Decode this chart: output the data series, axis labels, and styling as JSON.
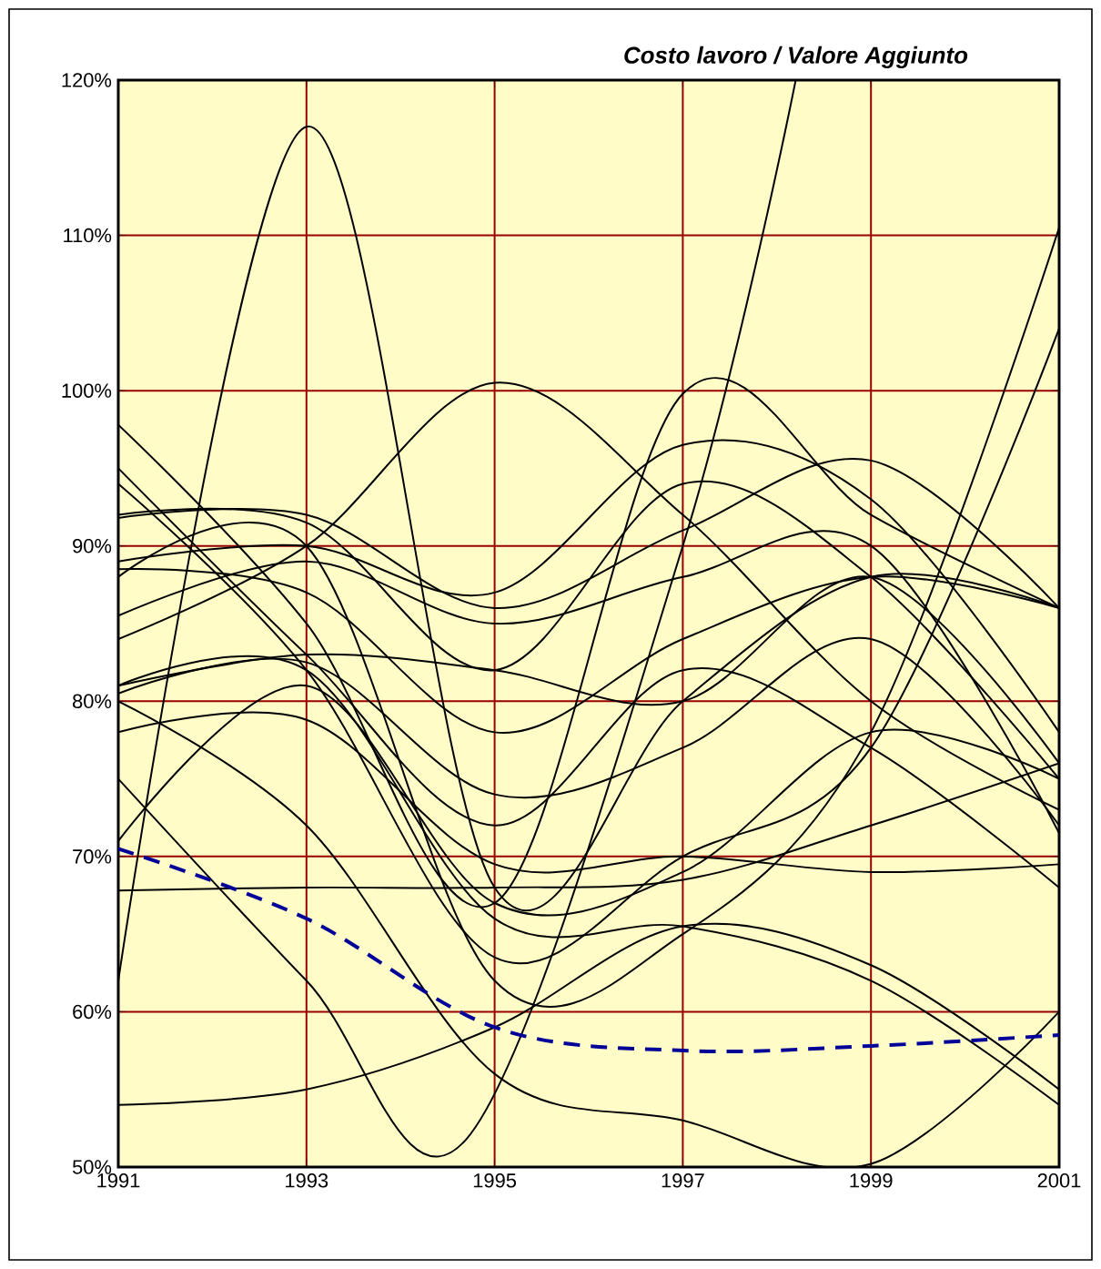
{
  "chart_data": {
    "type": "line",
    "title": "*Costo lavoro / Valore Aggiunto*",
    "x": [
      1991,
      1993,
      1995,
      1997,
      1999,
      2001
    ],
    "xlim": [
      1991,
      2001
    ],
    "xticks": [
      1991,
      1993,
      1995,
      1997,
      1999,
      2001
    ],
    "ylim": [
      50,
      120
    ],
    "yticks": [
      {
        "value": 50,
        "label": "50%"
      },
      {
        "value": 60,
        "label": "60%"
      },
      {
        "value": 70,
        "label": "70%"
      },
      {
        "value": 80,
        "label": "80%"
      },
      {
        "value": 90,
        "label": "90%"
      },
      {
        "value": 100,
        "label": "100%"
      },
      {
        "value": 110,
        "label": "110%"
      },
      {
        "value": 120,
        "label": "120%"
      }
    ],
    "grid": true,
    "marker": "none",
    "series": [
      {
        "color": "#000000",
        "values": [
          62,
          117,
          68,
          80,
          88,
          86
        ]
      },
      {
        "color": "#000000",
        "x": [
          1991,
          1993,
          1994.7,
          1997,
          1998.2
        ],
        "values": [
          75,
          62,
          51.8,
          90,
          120
        ]
      },
      {
        "color": "#000000",
        "values": [
          84,
          90,
          100.5,
          92,
          80,
          73
        ]
      },
      {
        "color": "#000000",
        "values": [
          97.8,
          85,
          67,
          99.8,
          92,
          86
        ]
      },
      {
        "color": "#000000",
        "values": [
          88,
          90,
          62,
          65,
          78,
          110.5
        ]
      },
      {
        "color": "#000000",
        "values": [
          94,
          82,
          63.5,
          70,
          77,
          104
        ]
      },
      {
        "color": "#000000",
        "values": [
          67.8,
          68,
          68,
          68.5,
          72,
          76
        ]
      },
      {
        "color": "#000000",
        "values": [
          54,
          55,
          59,
          65.5,
          63,
          55
        ]
      },
      {
        "color": "#000000",
        "values": [
          80,
          72,
          56,
          53,
          50.2,
          60
        ]
      },
      {
        "color": "#000000",
        "values": [
          81,
          82,
          66,
          65.5,
          62,
          54
        ]
      },
      {
        "color": "#000000",
        "values": [
          91.8,
          92,
          86,
          91,
          95.5,
          86
        ]
      },
      {
        "color": "#000000",
        "values": [
          89,
          90,
          87,
          96.5,
          93,
          78
        ]
      },
      {
        "color": "#000000",
        "values": [
          92,
          91.5,
          82,
          94,
          88,
          75
        ]
      },
      {
        "color": "#000000",
        "values": [
          85.5,
          89,
          85,
          88,
          90,
          71.5
        ]
      },
      {
        "color": "#000000",
        "values": [
          80.5,
          82.5,
          74,
          77,
          84,
          72
        ]
      },
      {
        "color": "#000000",
        "values": [
          81,
          83,
          82,
          80,
          88,
          76
        ]
      },
      {
        "color": "#000000",
        "values": [
          88.5,
          87,
          78,
          84,
          88,
          86
        ]
      },
      {
        "color": "#000000",
        "values": [
          71,
          81,
          67,
          69,
          78,
          75
        ]
      },
      {
        "color": "#000000",
        "values": [
          95,
          83,
          72,
          82,
          77,
          68
        ]
      },
      {
        "color": "#000000",
        "values": [
          78,
          78.8,
          69.5,
          70,
          69,
          69.5
        ]
      },
      {
        "color": "#000099",
        "line_style": "dashed",
        "values": [
          70.5,
          66,
          59,
          57.5,
          57.8,
          58.5
        ]
      }
    ]
  }
}
